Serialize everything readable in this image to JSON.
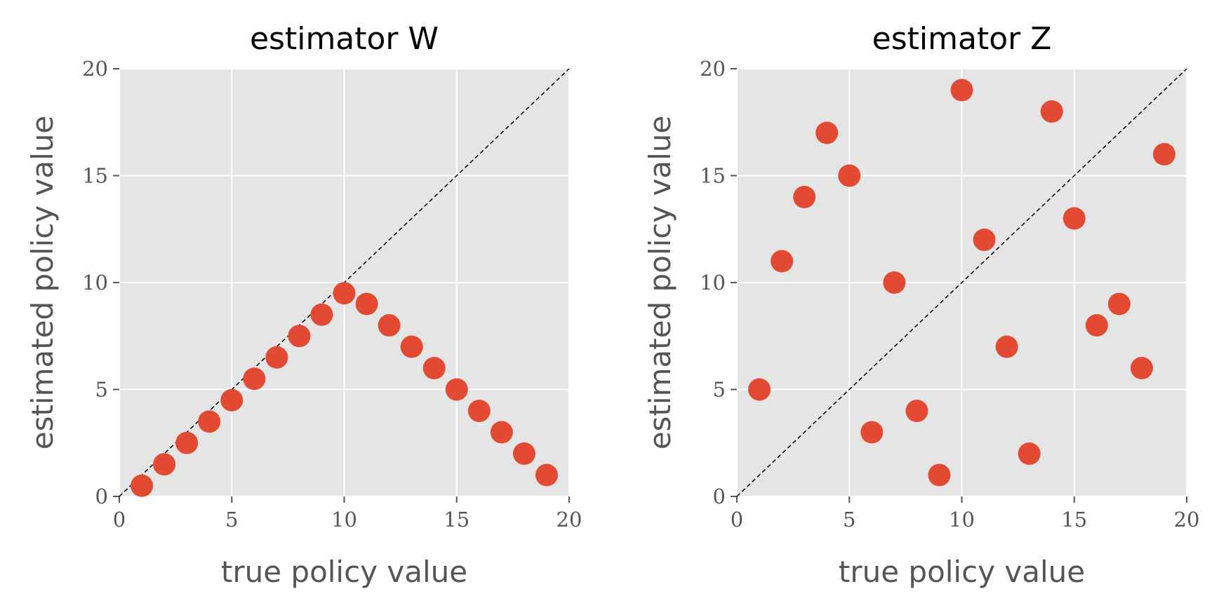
{
  "colors": {
    "panel_background": "#E5E5E5",
    "grid": "#FFFFFF",
    "marker": "#E24A33",
    "reference_line": "#000000",
    "text": "#555555"
  },
  "chart_data": [
    {
      "type": "scatter",
      "title": "estimator W",
      "xlabel": "true policy value",
      "ylabel": "estimated policy value",
      "xlim": [
        0,
        20
      ],
      "ylim": [
        0,
        20
      ],
      "xticks": [
        0,
        5,
        10,
        15,
        20
      ],
      "yticks": [
        0,
        5,
        10,
        15,
        20
      ],
      "grid": true,
      "reference_line": "y = x (dashed)",
      "series": [
        {
          "x": [
            1,
            2,
            3,
            4,
            5,
            6,
            7,
            8,
            9,
            10,
            11,
            12,
            13,
            14,
            15,
            16,
            17,
            18,
            19
          ],
          "y": [
            0.5,
            1.5,
            2.5,
            3.5,
            4.5,
            5.5,
            6.5,
            7.5,
            8.5,
            9.5,
            9,
            8,
            7,
            6,
            5,
            4,
            3,
            2,
            1
          ]
        }
      ]
    },
    {
      "type": "scatter",
      "title": "estimator Z",
      "xlabel": "true policy value",
      "ylabel": "estimated policy value",
      "xlim": [
        0,
        20
      ],
      "ylim": [
        0,
        20
      ],
      "xticks": [
        0,
        5,
        10,
        15,
        20
      ],
      "yticks": [
        0,
        5,
        10,
        15,
        20
      ],
      "grid": true,
      "reference_line": "y = x (dashed)",
      "series": [
        {
          "x": [
            1,
            2,
            3,
            4,
            5,
            6,
            7,
            8,
            9,
            10,
            11,
            12,
            13,
            14,
            15,
            16,
            17,
            18,
            19
          ],
          "y": [
            5,
            11,
            14,
            17,
            15,
            3,
            10,
            4,
            1,
            19,
            12,
            7,
            2,
            18,
            13,
            8,
            9,
            6,
            16
          ]
        }
      ]
    }
  ]
}
